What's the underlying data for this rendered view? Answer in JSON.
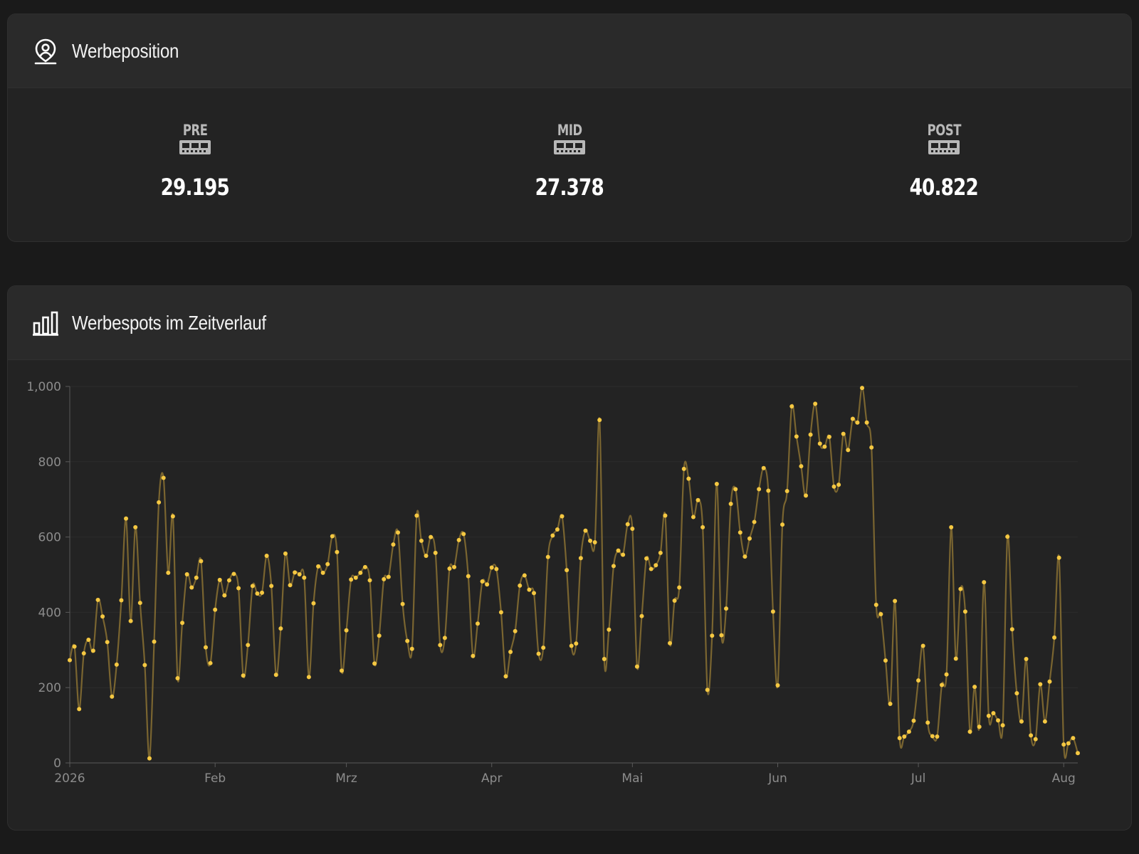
{
  "position_card": {
    "title": "Werbeposition",
    "icon": "map-pin-user-icon",
    "items": [
      {
        "label": "PRE",
        "icon": "film-strip-icon",
        "value": "29.195"
      },
      {
        "label": "MID",
        "icon": "film-strip-icon",
        "value": "27.378"
      },
      {
        "label": "POST",
        "icon": "film-strip-icon",
        "value": "40.822"
      }
    ]
  },
  "chart_card": {
    "title": "Werbespots im Zeitverlauf",
    "icon": "bar-chart-icon"
  },
  "colors": {
    "background": "#1a1a1a",
    "card": "#232323",
    "header": "#2a2a2a",
    "point": "#f5c842",
    "line": "#7a6530",
    "text": "#ffffff",
    "muted": "#8c8c8c"
  },
  "chart_data": {
    "type": "line",
    "title": "Werbespots im Zeitverlauf",
    "xlabel": "",
    "ylabel": "",
    "ylim": [
      0,
      1000
    ],
    "yticks": [
      0,
      200,
      400,
      600,
      800,
      1000
    ],
    "ytick_labels": [
      "0",
      "200",
      "400",
      "600",
      "800",
      "1,000"
    ],
    "xlim": [
      "2026-01-01",
      "2026-08-04"
    ],
    "xticks": [
      {
        "date": "2026-01-01",
        "label": "2026"
      },
      {
        "date": "2026-02-01",
        "label": "Feb"
      },
      {
        "date": "2026-03-01",
        "label": "Mrz"
      },
      {
        "date": "2026-04-01",
        "label": "Apr"
      },
      {
        "date": "2026-05-01",
        "label": "Mai"
      },
      {
        "date": "2026-06-01",
        "label": "Jun"
      },
      {
        "date": "2026-07-01",
        "label": "Jul"
      },
      {
        "date": "2026-08-01",
        "label": "Aug"
      }
    ],
    "grid": true,
    "x_interval": "1 day",
    "series": [
      {
        "values": [
          273,
          309,
          143,
          291,
          327,
          298,
          433,
          389,
          321,
          176,
          261,
          432,
          649,
          377,
          626,
          425,
          260,
          12,
          322,
          692,
          757,
          505,
          655,
          225,
          372,
          501,
          466,
          492,
          536,
          307,
          265,
          407,
          486,
          445,
          485,
          502,
          464,
          232,
          313,
          470,
          450,
          452,
          550,
          470,
          234,
          357,
          556,
          472,
          506,
          501,
          492,
          228,
          424,
          522,
          505,
          528,
          602,
          560,
          245,
          352,
          487,
          492,
          505,
          520,
          485,
          264,
          338,
          488,
          494,
          580,
          612,
          422,
          324,
          303,
          657,
          590,
          550,
          600,
          558,
          313,
          332,
          516,
          520,
          592,
          608,
          496,
          284,
          370,
          482,
          474,
          519,
          515,
          400,
          230,
          295,
          350,
          471,
          498,
          460,
          451,
          290,
          306,
          547,
          604,
          620,
          655,
          512,
          311,
          317,
          544,
          617,
          590,
          586,
          911,
          276,
          354,
          523,
          564,
          553,
          634,
          622,
          256,
          390,
          543,
          515,
          525,
          558,
          657,
          318,
          431,
          466,
          781,
          755,
          653,
          698,
          626,
          194,
          338,
          741,
          339,
          410,
          688,
          727,
          612,
          548,
          596,
          640,
          727,
          783,
          723,
          402,
          206,
          633,
          722,
          947,
          867,
          788,
          710,
          872,
          954,
          848,
          840,
          866,
          734,
          739,
          874,
          831,
          914,
          904,
          996,
          904,
          838,
          420,
          395,
          272,
          157,
          430,
          66,
          70,
          83,
          112,
          219,
          311,
          107,
          71,
          70,
          207,
          235,
          626,
          277,
          462,
          402,
          83,
          202,
          96,
          480,
          125,
          132,
          113,
          100,
          601,
          355,
          185,
          110,
          276,
          73,
          63,
          209,
          110,
          216,
          333,
          545,
          49,
          52,
          66,
          26
        ]
      }
    ]
  }
}
